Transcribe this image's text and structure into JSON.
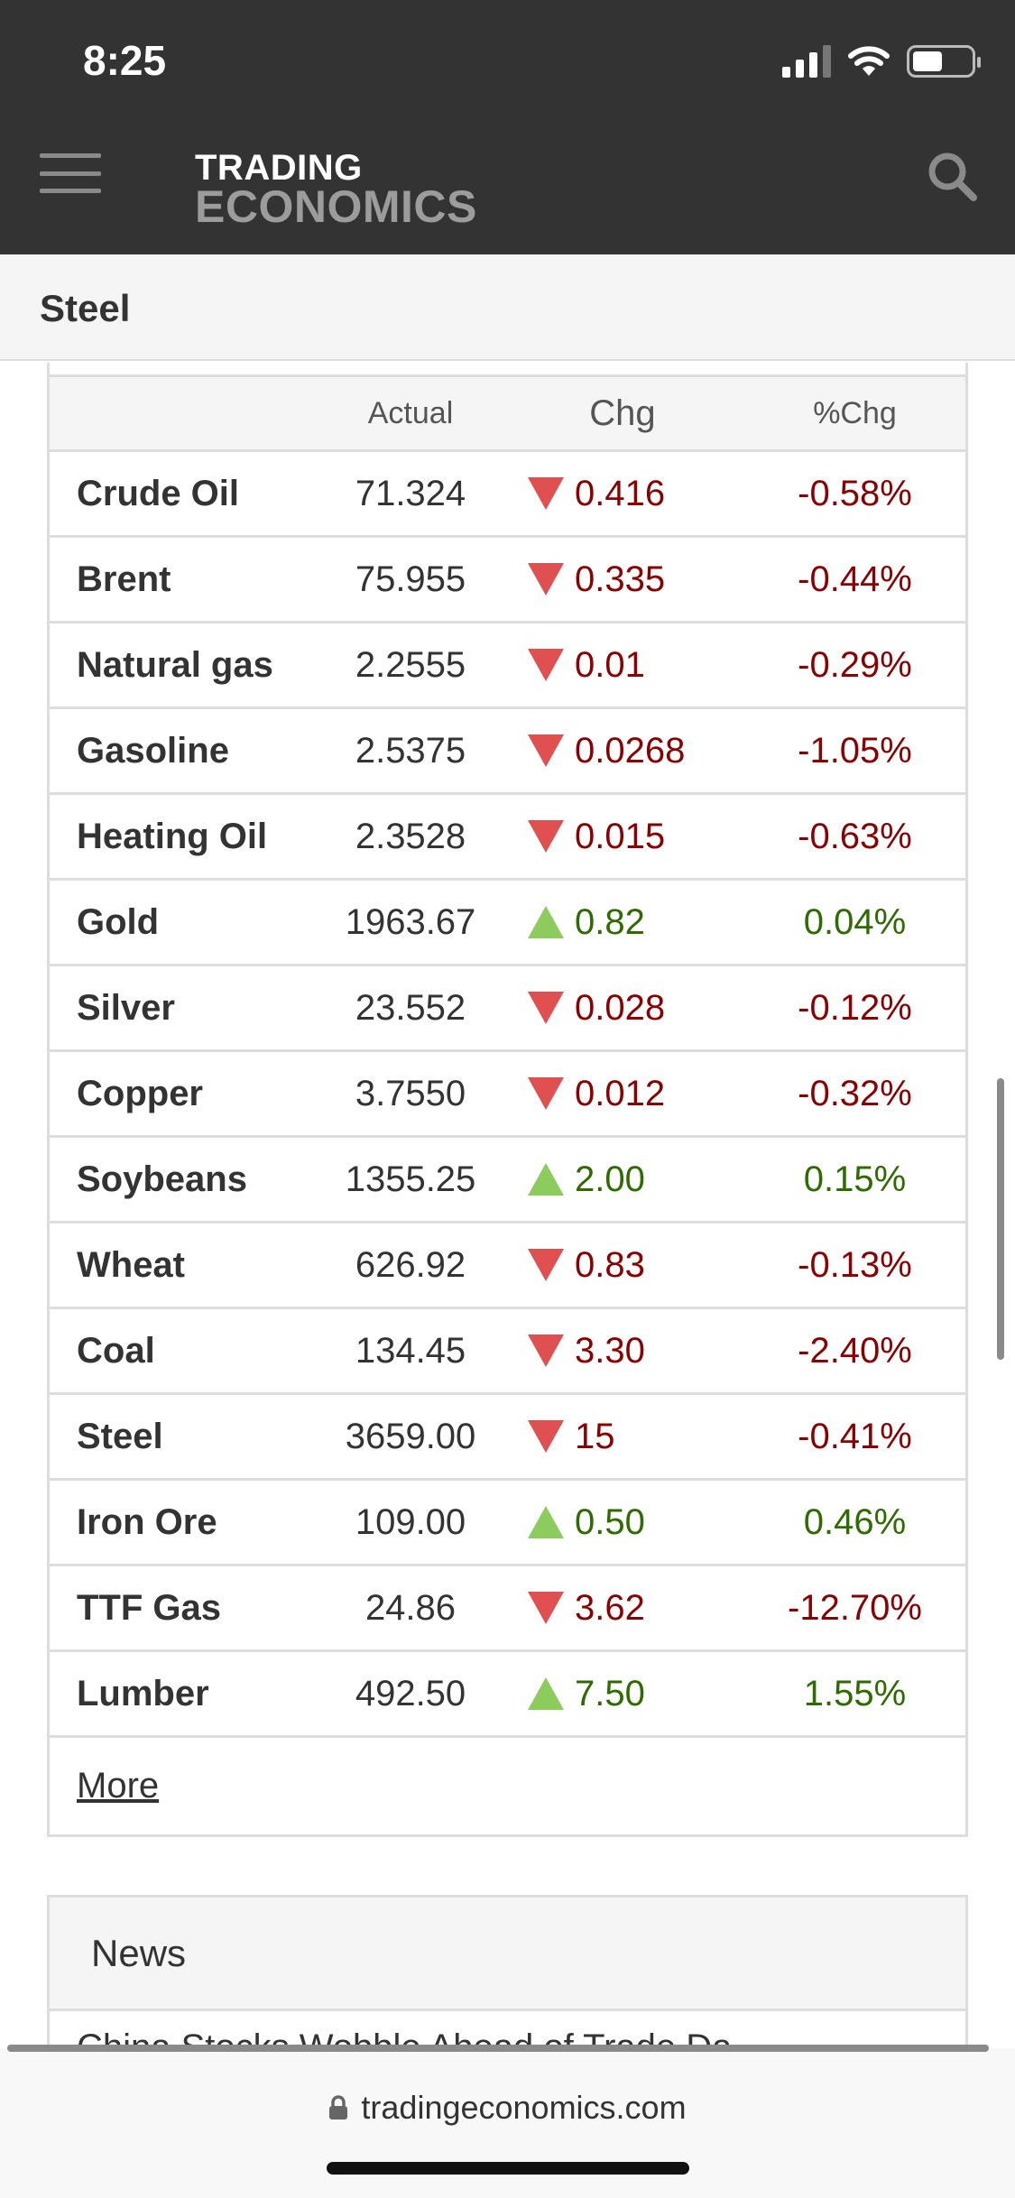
{
  "status_bar": {
    "time": "8:25"
  },
  "header": {
    "logo_line1": "TRADING",
    "logo_line2": "ECONOMICS"
  },
  "section": {
    "title": "Steel"
  },
  "table": {
    "columns": [
      "",
      "Actual",
      "Chg",
      "%Chg"
    ],
    "rows": [
      {
        "name": "Crude Oil",
        "actual": "71.324",
        "direction": "down",
        "chg": "0.416",
        "pct": "-0.58%"
      },
      {
        "name": "Brent",
        "actual": "75.955",
        "direction": "down",
        "chg": "0.335",
        "pct": "-0.44%"
      },
      {
        "name": "Natural gas",
        "actual": "2.2555",
        "direction": "down",
        "chg": "0.01",
        "pct": "-0.29%"
      },
      {
        "name": "Gasoline",
        "actual": "2.5375",
        "direction": "down",
        "chg": "0.0268",
        "pct": "-1.05%"
      },
      {
        "name": "Heating Oil",
        "actual": "2.3528",
        "direction": "down",
        "chg": "0.015",
        "pct": "-0.63%"
      },
      {
        "name": "Gold",
        "actual": "1963.67",
        "direction": "up",
        "chg": "0.82",
        "pct": "0.04%"
      },
      {
        "name": "Silver",
        "actual": "23.552",
        "direction": "down",
        "chg": "0.028",
        "pct": "-0.12%"
      },
      {
        "name": "Copper",
        "actual": "3.7550",
        "direction": "down",
        "chg": "0.012",
        "pct": "-0.32%"
      },
      {
        "name": "Soybeans",
        "actual": "1355.25",
        "direction": "up",
        "chg": "2.00",
        "pct": "0.15%"
      },
      {
        "name": "Wheat",
        "actual": "626.92",
        "direction": "down",
        "chg": "0.83",
        "pct": "-0.13%"
      },
      {
        "name": "Coal",
        "actual": "134.45",
        "direction": "down",
        "chg": "3.30",
        "pct": "-2.40%"
      },
      {
        "name": "Steel",
        "actual": "3659.00",
        "direction": "down",
        "chg": "15",
        "pct": "-0.41%"
      },
      {
        "name": "Iron Ore",
        "actual": "109.00",
        "direction": "up",
        "chg": "0.50",
        "pct": "0.46%"
      },
      {
        "name": "TTF Gas",
        "actual": "24.86",
        "direction": "down",
        "chg": "3.62",
        "pct": "-12.70%"
      },
      {
        "name": "Lumber",
        "actual": "492.50",
        "direction": "up",
        "chg": "7.50",
        "pct": "1.55%"
      }
    ],
    "more_label": "More"
  },
  "news": {
    "title": "News",
    "first_headline": "China Stocks Wobble Ahead of Trade Da"
  },
  "browser": {
    "url": "tradingeconomics.com"
  },
  "colors": {
    "header_bg": "#333333",
    "down_arrow": "#e05050",
    "up_arrow": "#8ccc5c",
    "down_text": "#8b0000",
    "up_text": "#2e6b00"
  },
  "icons": [
    "hamburger-menu-icon",
    "search-icon",
    "lock-icon",
    "signal-icon",
    "wifi-icon",
    "battery-icon",
    "arrow-down-icon",
    "arrow-up-icon"
  ]
}
